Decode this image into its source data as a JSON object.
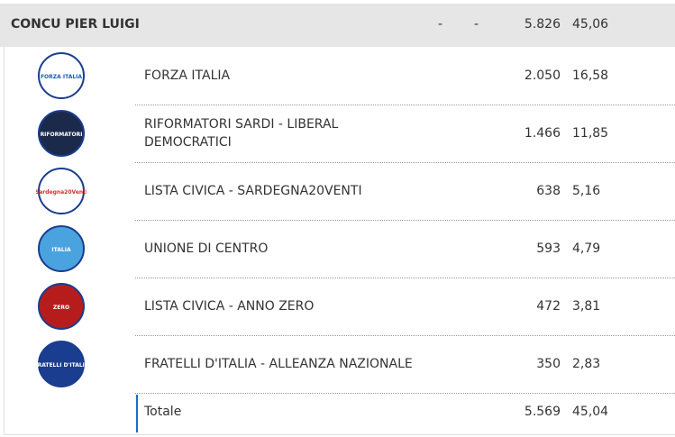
{
  "header": {
    "name": "CONCU PIER LUIGI",
    "col1": "-",
    "col2": "-",
    "votes": "5.826",
    "percent": "45,06"
  },
  "rows": [
    {
      "logo_text": "FORZA ITALIA",
      "list": "FORZA ITALIA",
      "votes": "2.050",
      "percent": "16,58",
      "logo_color": "#1a5fb4",
      "logo_bg": "#ffffff"
    },
    {
      "logo_text": "RIFORMATORI",
      "list": "RIFORMATORI SARDI - LIBERAL DEMOCRATICI",
      "votes": "1.466",
      "percent": "11,85",
      "logo_color": "#ffffff",
      "logo_bg": "#1b2a4a"
    },
    {
      "logo_text": "Sardegna20Venti",
      "list": "LISTA CIVICA - SARDEGNA20VENTI",
      "votes": "638",
      "percent": "5,16",
      "logo_color": "#d32f2f",
      "logo_bg": "#ffffff"
    },
    {
      "logo_text": "ITALIA",
      "list": "UNIONE DI CENTRO",
      "votes": "593",
      "percent": "4,79",
      "logo_color": "#ffffff",
      "logo_bg": "#4aa3df"
    },
    {
      "logo_text": "ZERO",
      "list": "LISTA CIVICA - ANNO ZERO",
      "votes": "472",
      "percent": "3,81",
      "logo_color": "#ffffff",
      "logo_bg": "#b71c1c"
    },
    {
      "logo_text": "FRATELLI D'ITALIA",
      "list": "FRATELLI D'ITALIA - ALLEANZA NAZIONALE",
      "votes": "350",
      "percent": "2,83",
      "logo_color": "#ffffff",
      "logo_bg": "#1a3d8f"
    }
  ],
  "total": {
    "label": "Totale",
    "votes": "5.569",
    "percent": "45,04"
  }
}
